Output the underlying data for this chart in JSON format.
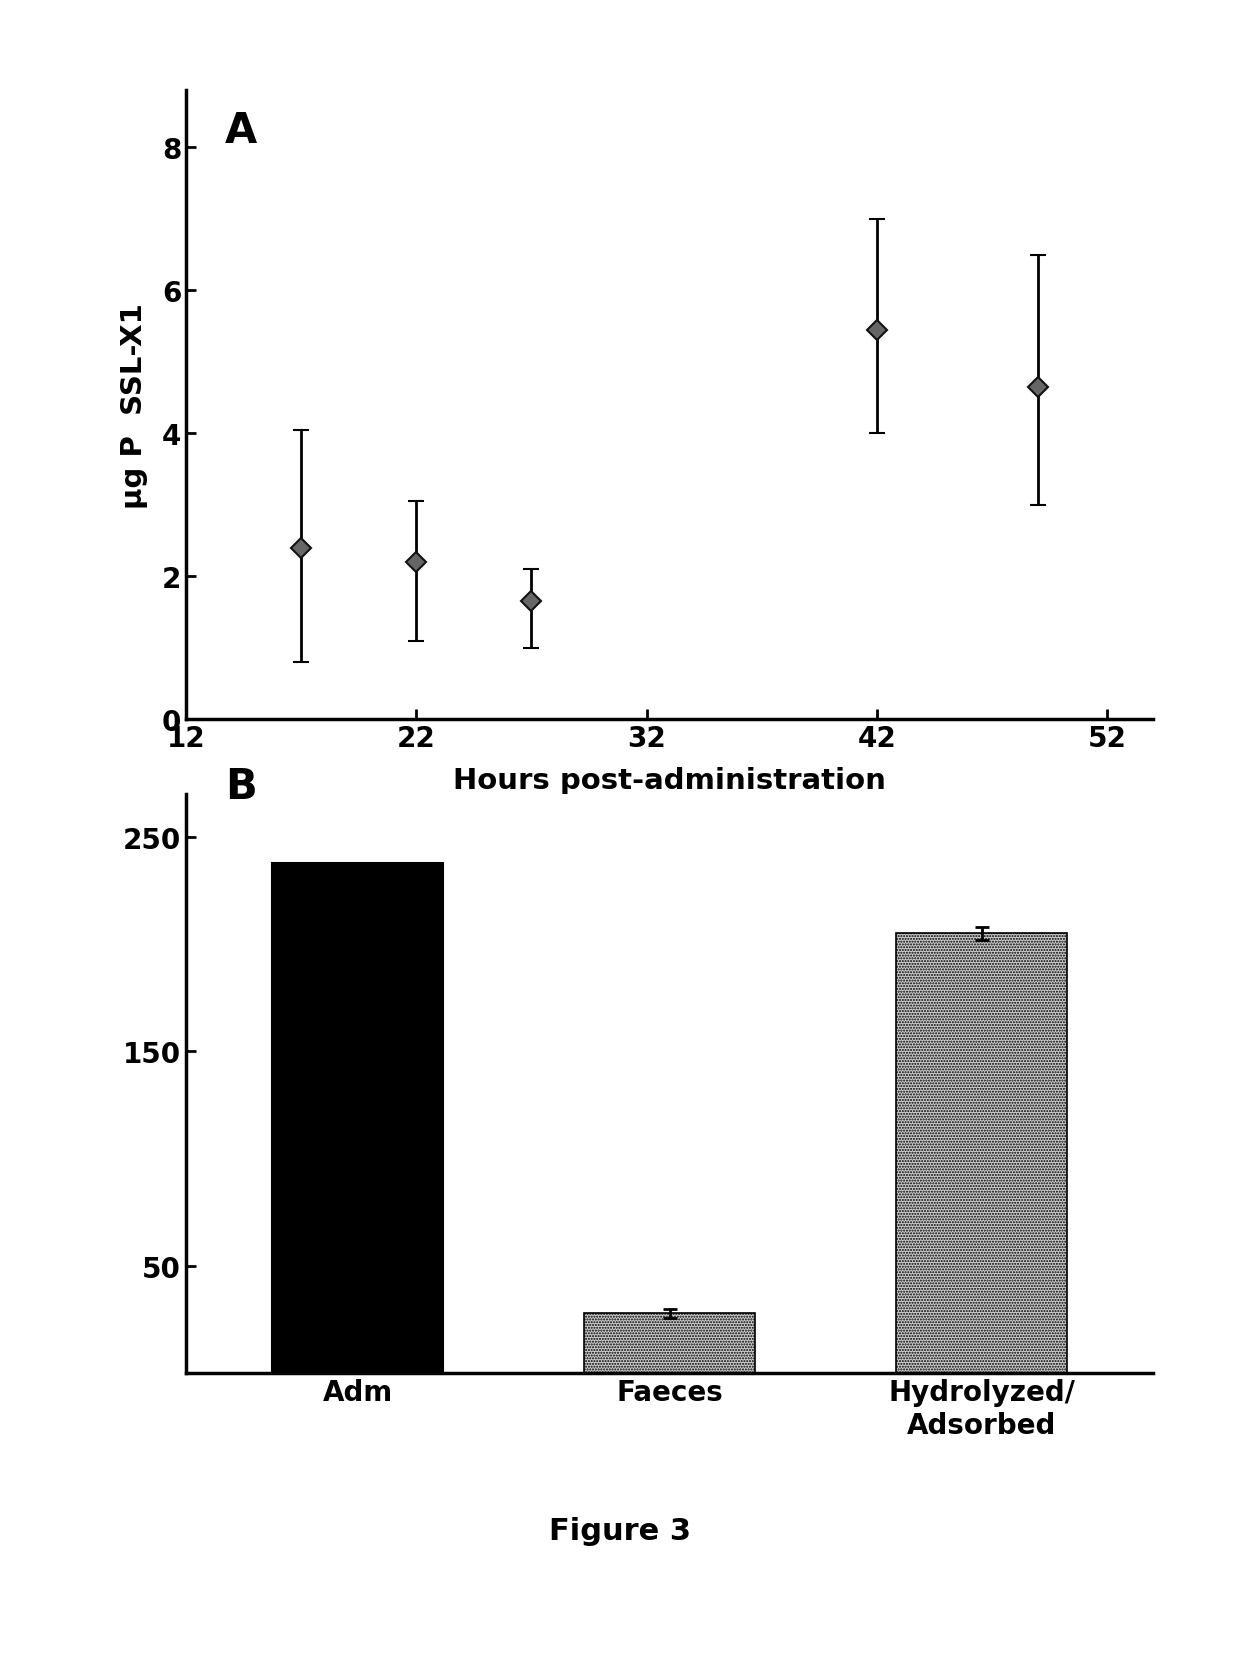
{
  "panel_A": {
    "x": [
      17,
      22,
      27,
      42,
      49
    ],
    "y": [
      2.4,
      2.2,
      1.65,
      5.45,
      4.65
    ],
    "yerr_upper": [
      1.65,
      0.85,
      0.45,
      1.55,
      1.85
    ],
    "yerr_lower": [
      1.6,
      1.1,
      0.65,
      1.45,
      1.65
    ],
    "xlabel": "Hours post-administration",
    "ylabel": "µg P  SSL-X1",
    "xlim": [
      12,
      54
    ],
    "ylim": [
      0,
      8.8
    ],
    "xticks": [
      12,
      22,
      32,
      42,
      52
    ],
    "yticks": [
      0,
      2,
      4,
      6,
      8
    ],
    "panel_label": "A"
  },
  "panel_B": {
    "categories": [
      "Adm",
      "Faeces",
      "Hydrolyzed/\nAdsorbed"
    ],
    "values": [
      238,
      28,
      205
    ],
    "yerr": [
      0,
      2,
      3
    ],
    "bar_colors": [
      "#000000",
      "#b8b8b8",
      "#b0b0b0"
    ],
    "bar_hatches": [
      null,
      "......",
      "......"
    ],
    "ylim": [
      0,
      270
    ],
    "yticks": [
      50,
      150,
      250
    ],
    "ytick_labels": [
      "50",
      "150",
      "250"
    ],
    "panel_label": "B"
  },
  "figure_label": "Figure 3",
  "background_color": "#ffffff"
}
